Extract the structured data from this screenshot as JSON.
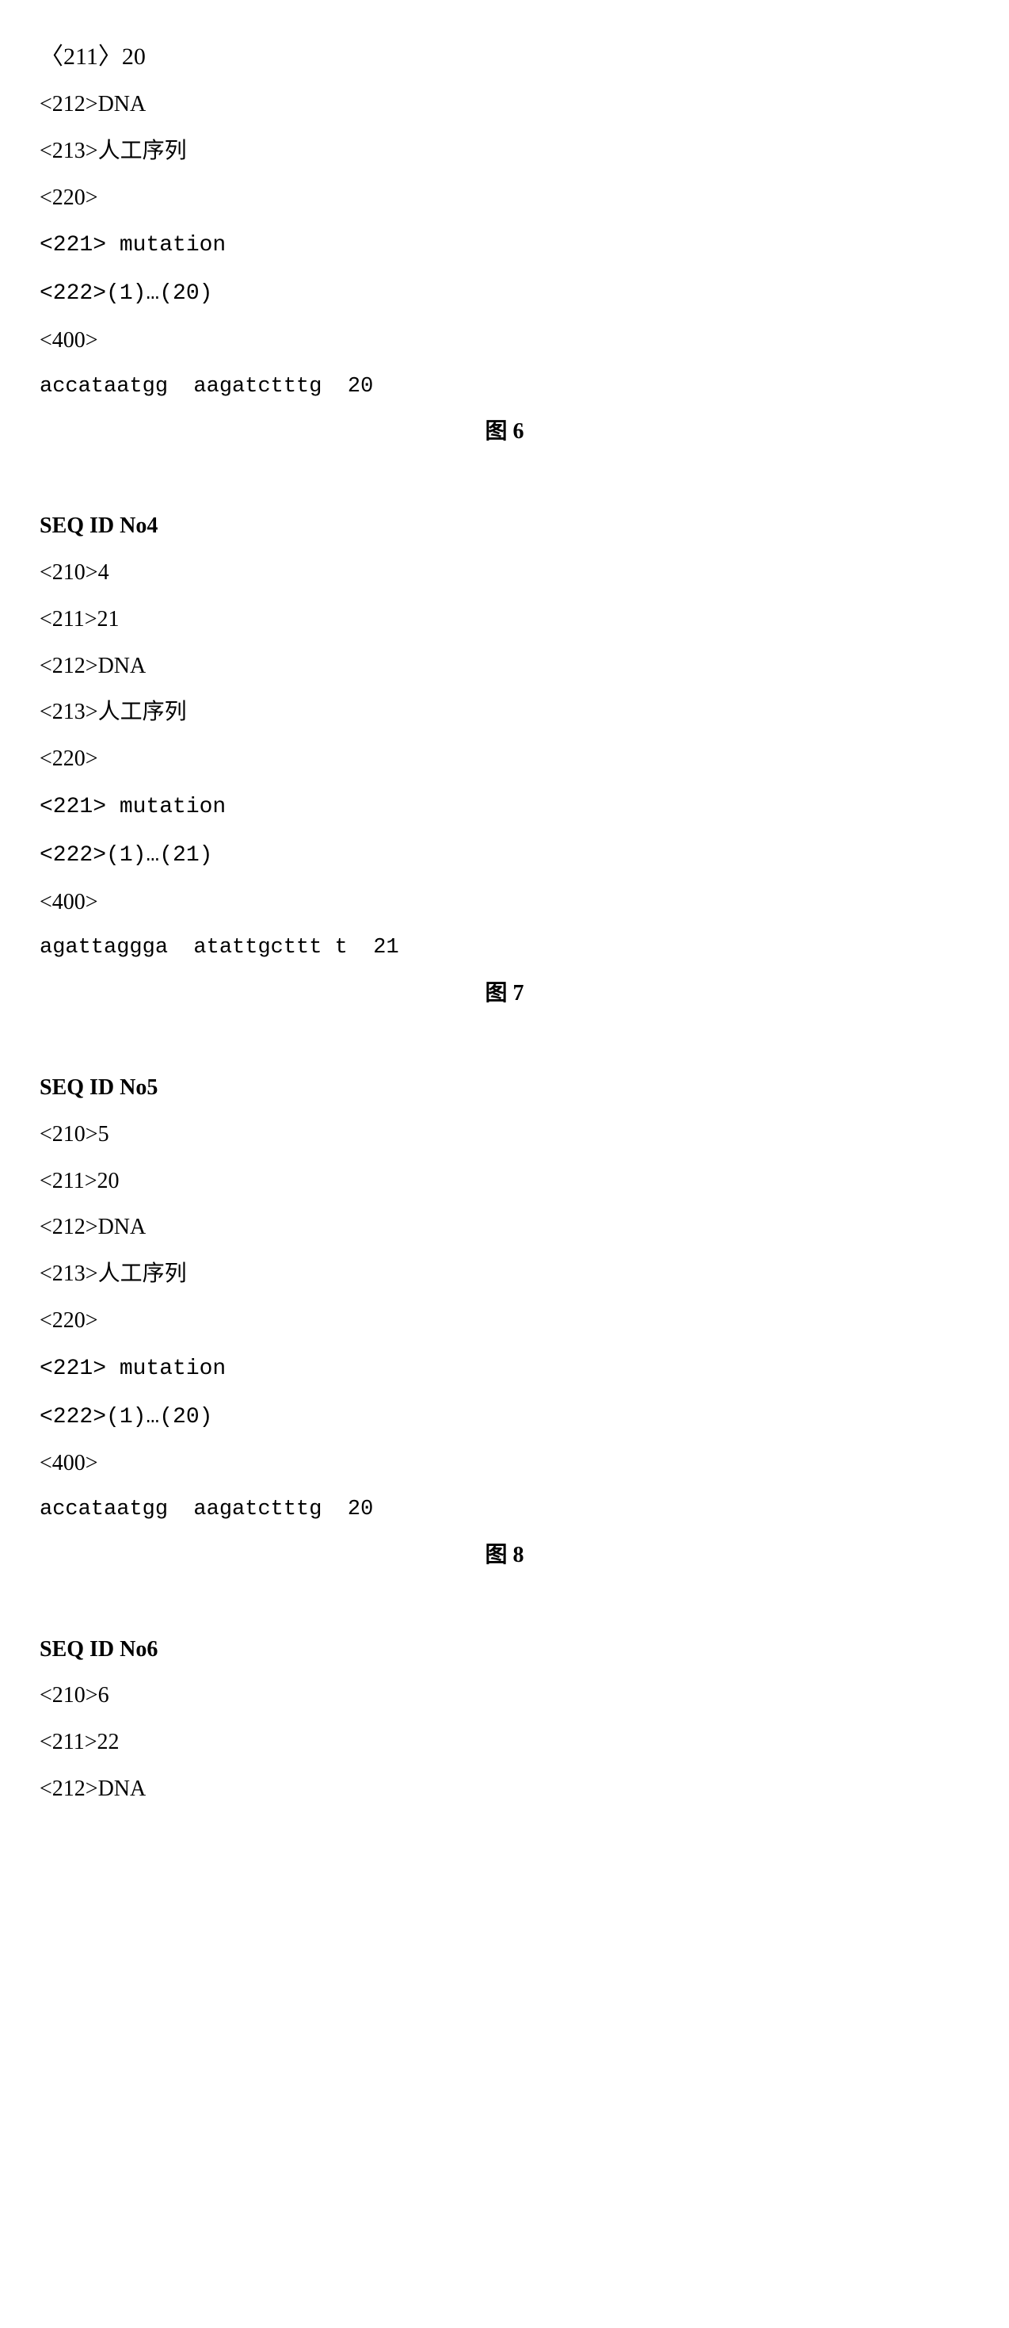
{
  "block1": {
    "l1": "〈211〉20",
    "l2": "<212>DNA",
    "l3": "<213>人工序列",
    "l4": "<220>",
    "l5": "<221> mutation",
    "l6": "<222>(1)…(20)",
    "l7": "<400>",
    "seq": "accataatgg  aagatctttg  20",
    "fig": "图 6"
  },
  "block2": {
    "heading": "SEQ ID No4",
    "l1": "<210>4",
    "l2": "<211>21",
    "l3": "<212>DNA",
    "l4": "<213>人工序列",
    "l5": "<220>",
    "l6": "<221> mutation",
    "l7": "<222>(1)…(21)",
    "l8": "<400>",
    "seq": "agattaggga  atattgcttt t  21",
    "fig": "图 7"
  },
  "block3": {
    "heading": "SEQ ID No5",
    "l1": "<210>5",
    "l2": "<211>20",
    "l3": "<212>DNA",
    "l4": "<213>人工序列",
    "l5": "<220>",
    "l6": "<221> mutation",
    "l7": "<222>(1)…(20)",
    "l8": "<400>",
    "seq": "accataatgg  aagatctttg  20",
    "fig": "图 8"
  },
  "block4": {
    "heading": "SEQ ID No6",
    "l1": "<210>6",
    "l2": "<211>22",
    "l3": "<212>DNA"
  }
}
